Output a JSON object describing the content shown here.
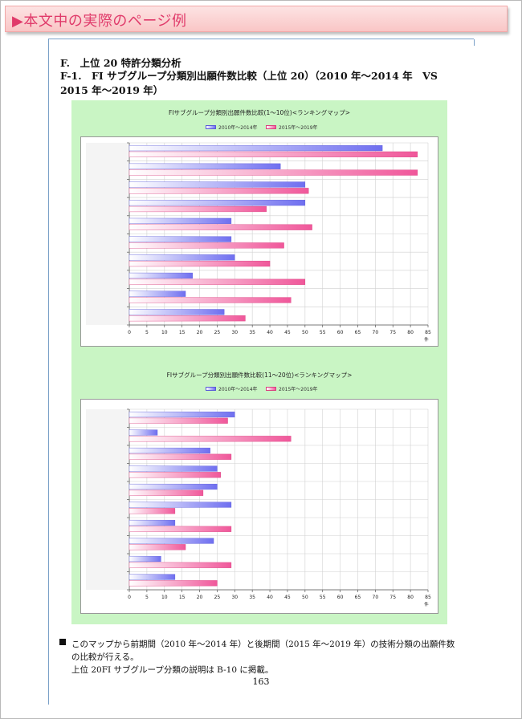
{
  "banner": {
    "title": "▶本文中の実際のページ例"
  },
  "section": {
    "heading": "F.　上位 20 特許分類分析",
    "subheading": "F-1.　FI サブグループ分類別出願件数比較（上位 20）（2010 年～2014 年　VS 2015 年～2019 年）"
  },
  "colors": {
    "series_a": "#6f6ff0",
    "series_b": "#f0579a",
    "background": "#c9f5c4"
  },
  "chart_data": [
    {
      "type": "bar",
      "orientation": "horizontal",
      "title": "FIサブグループ分類別出願件数比較(1～10位)<ランキングマップ>",
      "categories": [
        "",
        "",
        "",
        "",
        "",
        "",
        "",
        "",
        "",
        ""
      ],
      "series": [
        {
          "name": "2010年～2014年",
          "values": [
            72,
            43,
            50,
            50,
            29,
            29,
            30,
            18,
            16,
            27
          ]
        },
        {
          "name": "2015年～2019年",
          "values": [
            82,
            82,
            51,
            39,
            52,
            44,
            40,
            50,
            46,
            33
          ]
        }
      ],
      "xticks": [
        0,
        5,
        10,
        15,
        20,
        25,
        30,
        35,
        40,
        45,
        50,
        55,
        60,
        65,
        70,
        75,
        80,
        85
      ],
      "xlim": [
        0,
        85
      ],
      "xunit": "件",
      "grid": true,
      "legend": "top"
    },
    {
      "type": "bar",
      "orientation": "horizontal",
      "title": "FIサブグループ分類別出願件数比較(11～20位)<ランキングマップ>",
      "categories": [
        "",
        "",
        "",
        "",
        "",
        "",
        "",
        "",
        "",
        ""
      ],
      "series": [
        {
          "name": "2010年～2014年",
          "values": [
            30,
            8,
            23,
            25,
            25,
            29,
            13,
            24,
            9,
            13
          ]
        },
        {
          "name": "2015年～2019年",
          "values": [
            28,
            46,
            29,
            26,
            21,
            13,
            29,
            16,
            29,
            25
          ]
        }
      ],
      "xticks": [
        0,
        5,
        10,
        15,
        20,
        25,
        30,
        35,
        40,
        45,
        50,
        55,
        60,
        65,
        70,
        75,
        80,
        85
      ],
      "xlim": [
        0,
        85
      ],
      "xunit": "件",
      "grid": true,
      "legend": "top"
    }
  ],
  "footer": {
    "line1": "このマップから前期間（2010 年～2014 年）と後期間（2015 年～2019 年）の技術分類の出願件数",
    "line2": "の比較が行える。",
    "line3": "上位 20FI サブグループ分類の説明は B-10 に掲載。"
  },
  "page_number": "163"
}
